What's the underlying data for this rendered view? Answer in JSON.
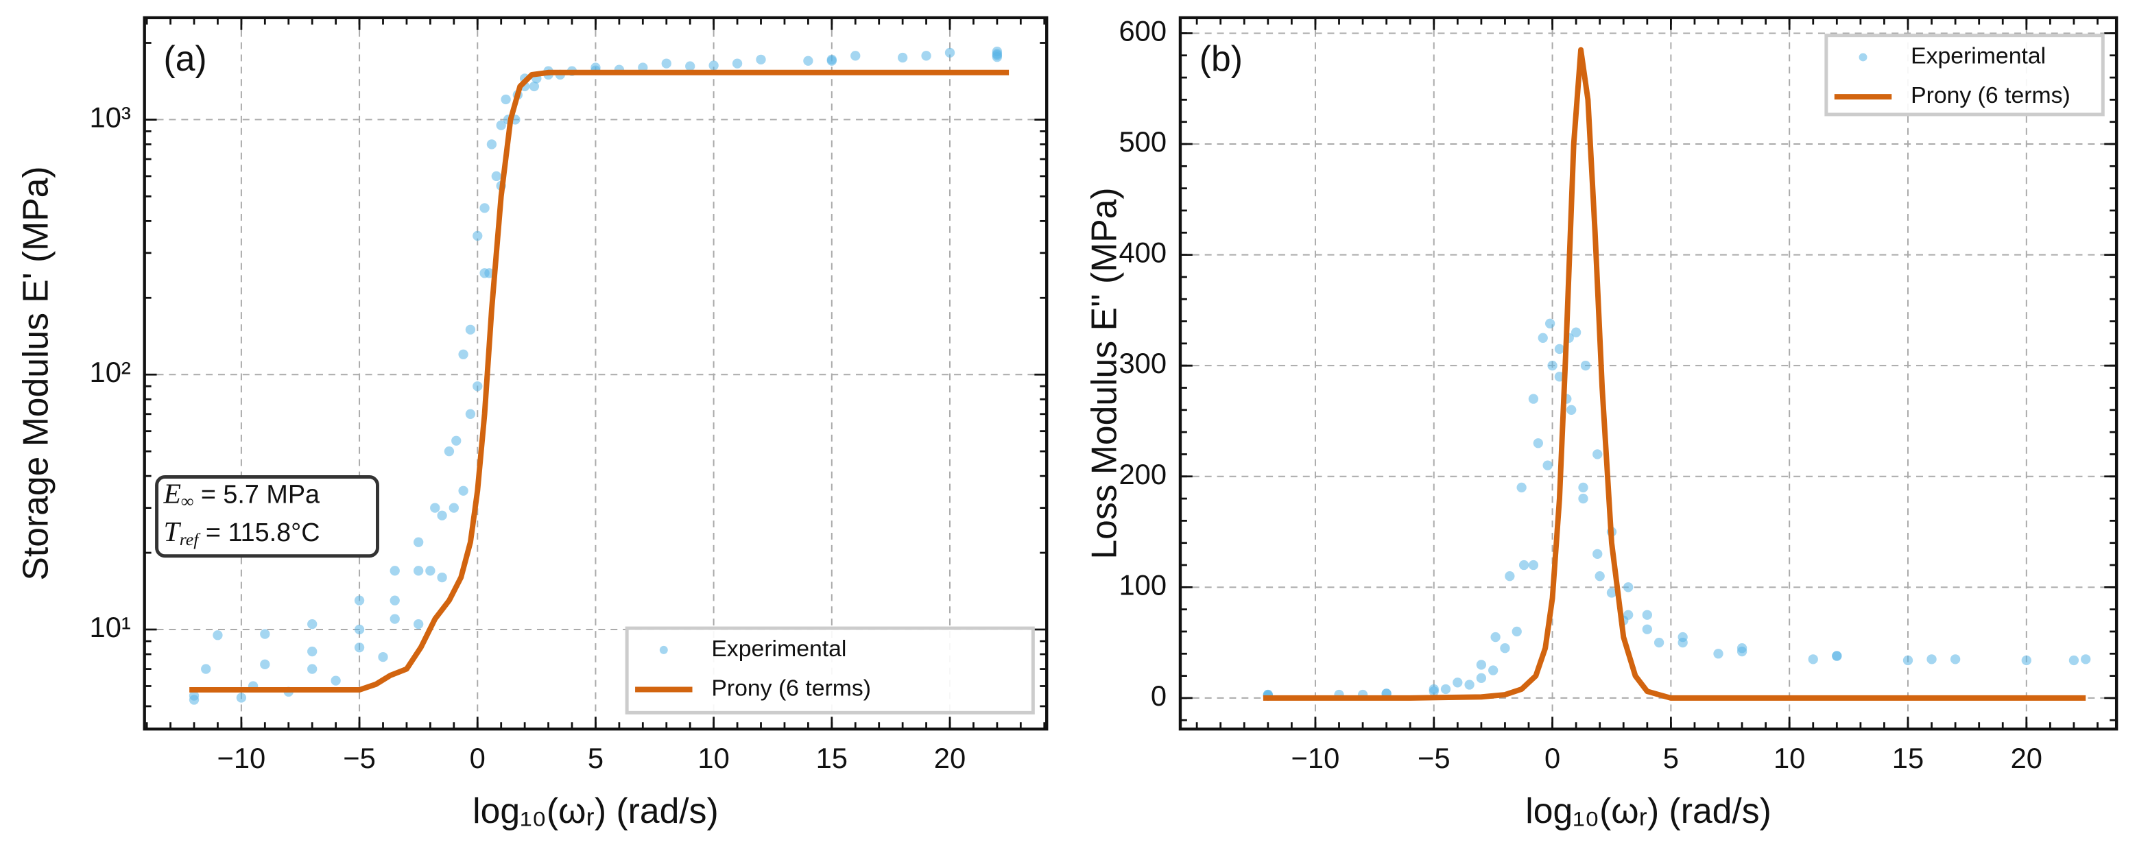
{
  "chart_data": [
    {
      "type": "line",
      "panel_label": "(a)",
      "xlabel": "log₁₀(ωᵣ) (rad/s)",
      "ylabel": "Storage Modulus E' (MPa)",
      "xlim": [
        -14.1,
        24.1
      ],
      "ylim": [
        4.07,
        2510
      ],
      "yscale": "log",
      "grid": true,
      "legend": "lower right",
      "xticks": [
        {
          "value": -10,
          "label": "−10"
        },
        {
          "value": -5,
          "label": "−5"
        },
        0,
        5,
        10,
        15,
        20
      ],
      "yticks": [
        {
          "value": 10,
          "label": "10¹"
        },
        {
          "value": 100,
          "label": "10²"
        },
        {
          "value": 1000,
          "label": "10³"
        }
      ],
      "annotation": [
        {
          "base": "E",
          "sub": "∞",
          "text": " = 5.7 MPa"
        },
        {
          "base": "T",
          "sub": "ref",
          "text": " = 115.8°C"
        }
      ],
      "series": [
        {
          "name": "Experimental",
          "mode": "markers",
          "color": "#5ab4e5",
          "x": [
            -11,
            -9,
            -7,
            -5,
            -3.5,
            -2.5,
            -1.8,
            -1.2,
            -0.6,
            0,
            0.6,
            1.2,
            2,
            3,
            5,
            8,
            12,
            16,
            20,
            22,
            -11.5,
            -9,
            -7,
            -5,
            -3.5,
            -2.5,
            -1.5,
            -0.9,
            -0.3,
            0.3,
            1,
            1.7,
            2.5,
            4,
            7,
            11,
            15,
            19,
            22,
            -12,
            -9.5,
            -7,
            -5,
            -3.5,
            -2,
            -1,
            -0.3,
            0.3,
            0.8,
            1.3,
            2,
            3,
            5,
            9,
            14,
            18,
            22,
            -12,
            -10,
            -8,
            -6,
            -4,
            -2.5,
            -1.5,
            -0.6,
            0,
            0.5,
            1,
            1.6,
            2.4,
            3.5,
            6,
            10,
            15,
            22
          ],
          "values": [
            9.5,
            9.6,
            10.5,
            13,
            17,
            22,
            30,
            50,
            120,
            350,
            800,
            1200,
            1450,
            1550,
            1600,
            1660,
            1720,
            1780,
            1830,
            1850,
            7,
            7.3,
            8.2,
            10,
            13,
            17,
            28,
            55,
            150,
            450,
            950,
            1250,
            1450,
            1550,
            1600,
            1660,
            1720,
            1780,
            1810,
            5.5,
            6,
            7,
            8.5,
            11,
            17,
            30,
            70,
            250,
            600,
            1000,
            1350,
            1500,
            1560,
            1620,
            1700,
            1750,
            1790,
            5.3,
            5.4,
            5.7,
            6.3,
            7.8,
            10.5,
            16,
            35,
            90,
            250,
            550,
            1000,
            1350,
            1500,
            1570,
            1630,
            1700,
            1760
          ]
        },
        {
          "name": "Prony (6 terms)",
          "mode": "line",
          "color": "#d2640f",
          "x": [
            -12.2,
            -8,
            -5,
            -4.3,
            -3.7,
            -3,
            -2.4,
            -1.8,
            -1.2,
            -0.7,
            -0.3,
            0,
            0.3,
            0.6,
            1,
            1.4,
            1.8,
            2.3,
            3,
            5,
            10,
            22.5
          ],
          "values": [
            5.8,
            5.8,
            5.8,
            6.1,
            6.6,
            7,
            8.5,
            11,
            13,
            16,
            22,
            35,
            70,
            180,
            500,
            1000,
            1350,
            1500,
            1530,
            1530,
            1530,
            1530
          ]
        }
      ]
    },
    {
      "type": "line",
      "panel_label": "(b)",
      "xlabel": "log₁₀(ωᵣ) (rad/s)",
      "ylabel": "Loss Modulus E'' (MPa)",
      "xlim": [
        -15.7,
        23.8
      ],
      "ylim": [
        -28,
        614
      ],
      "yscale": "linear",
      "grid": true,
      "legend": "upper right",
      "xticks": [
        {
          "value": -10,
          "label": "−10"
        },
        {
          "value": -5,
          "label": "−5"
        },
        0,
        5,
        10,
        15,
        20
      ],
      "yticks": [
        0,
        100,
        200,
        300,
        400,
        500,
        600
      ],
      "series": [
        {
          "name": "Experimental",
          "mode": "markers",
          "color": "#5ab4e5",
          "x": [
            -12,
            -9,
            -7,
            -5,
            -4,
            -3,
            -2.4,
            -1.8,
            -1.3,
            -0.8,
            -0.4,
            -0.1,
            0.3,
            0.8,
            1.3,
            1.9,
            2.5,
            3.2,
            4,
            5.5,
            8,
            12,
            16,
            20,
            22.5,
            -12,
            -8,
            -5,
            -3.5,
            -2.5,
            -1.5,
            -0.8,
            -0.2,
            0.3,
            0.7,
            1,
            1.4,
            1.9,
            2.5,
            3.2,
            4,
            5.5,
            8,
            12,
            17,
            22,
            -12,
            -7,
            -4.5,
            -3,
            -2,
            -1.2,
            -0.6,
            0,
            0.6,
            1.3,
            2,
            3,
            4.5,
            7,
            11,
            15
          ],
          "values": [
            3,
            3,
            4,
            8,
            14,
            30,
            55,
            110,
            190,
            270,
            325,
            338,
            315,
            260,
            190,
            130,
            95,
            75,
            62,
            50,
            42,
            38,
            35,
            34,
            35,
            2,
            3,
            6,
            12,
            25,
            60,
            120,
            210,
            290,
            325,
            330,
            300,
            220,
            150,
            100,
            75,
            55,
            45,
            38,
            35,
            34,
            3,
            4,
            8,
            18,
            45,
            120,
            230,
            300,
            270,
            180,
            110,
            70,
            50,
            40,
            35,
            34
          ]
        },
        {
          "name": "Prony (6 terms)",
          "mode": "line",
          "color": "#d2640f",
          "x": [
            -12.2,
            -6,
            -3,
            -2,
            -1.3,
            -0.7,
            -0.3,
            0,
            0.3,
            0.6,
            0.9,
            1.2,
            1.5,
            1.8,
            2.1,
            2.5,
            3,
            3.5,
            4,
            5,
            10,
            22.5
          ],
          "values": [
            0,
            0,
            1,
            3,
            8,
            20,
            45,
            90,
            180,
            330,
            500,
            585,
            540,
            420,
            280,
            140,
            55,
            20,
            6,
            0,
            0,
            0
          ]
        }
      ]
    }
  ]
}
